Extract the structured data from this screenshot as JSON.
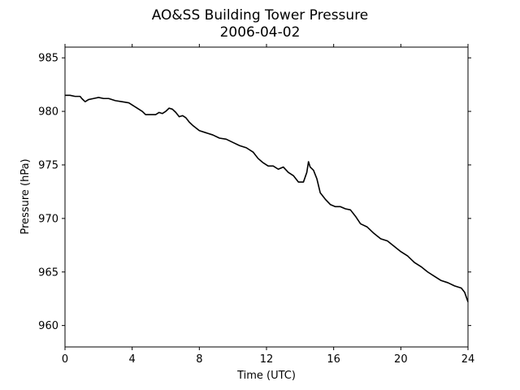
{
  "chart_data": {
    "type": "line",
    "title": "AO&SS Building Tower Pressure",
    "subtitle": "2006-04-02",
    "xlabel": "Time (UTC)",
    "ylabel": "Pressure (hPa)",
    "xlim": [
      0,
      24
    ],
    "ylim": [
      958,
      986
    ],
    "xticks": [
      0,
      4,
      8,
      12,
      16,
      20,
      24
    ],
    "yticks": [
      960,
      965,
      970,
      975,
      980,
      985
    ],
    "grid": false,
    "line_color": "#000000",
    "series": [
      {
        "x": [
          0,
          0.3,
          0.6,
          0.9,
          1.0,
          1.2,
          1.4,
          1.7,
          2.0,
          2.3,
          2.6,
          3.0,
          3.4,
          3.8,
          4.2,
          4.6,
          4.8,
          5.0,
          5.4,
          5.6,
          5.8,
          6.0,
          6.2,
          6.4,
          6.6,
          6.8,
          7.0,
          7.2,
          7.4,
          7.6,
          8.0,
          8.4,
          8.8,
          9.2,
          9.6,
          10.0,
          10.4,
          10.8,
          11.2,
          11.5,
          11.8,
          12.1,
          12.4,
          12.7,
          13.0,
          13.3,
          13.6,
          13.9,
          14.2,
          14.4,
          14.5,
          14.6,
          14.8,
          15.0,
          15.2,
          15.5,
          15.8,
          16.1,
          16.4,
          16.7,
          17.0,
          17.3,
          17.6,
          18.0,
          18.4,
          18.8,
          19.2,
          19.6,
          20.0,
          20.4,
          20.8,
          21.2,
          21.6,
          22.0,
          22.4,
          22.8,
          23.2,
          23.6,
          23.8,
          24.0
        ],
        "y": [
          981.5,
          981.5,
          981.4,
          981.4,
          981.2,
          980.9,
          981.1,
          981.2,
          981.3,
          981.2,
          981.2,
          981.0,
          980.9,
          980.8,
          980.4,
          980.0,
          979.7,
          979.7,
          979.7,
          979.9,
          979.8,
          980.0,
          980.3,
          980.2,
          979.9,
          979.5,
          979.6,
          979.4,
          979.0,
          978.7,
          978.2,
          978.0,
          977.8,
          977.5,
          977.4,
          977.1,
          976.8,
          976.6,
          976.2,
          975.6,
          975.2,
          974.9,
          974.9,
          974.6,
          974.8,
          974.3,
          974.0,
          973.4,
          973.4,
          974.3,
          975.3,
          974.8,
          974.5,
          973.7,
          972.4,
          971.8,
          971.3,
          971.1,
          971.1,
          970.9,
          970.8,
          970.2,
          969.5,
          969.2,
          968.6,
          968.1,
          967.9,
          967.4,
          966.9,
          966.5,
          965.9,
          965.5,
          965.0,
          964.6,
          964.2,
          964.0,
          963.7,
          963.5,
          963.1,
          962.2
        ]
      }
    ]
  }
}
